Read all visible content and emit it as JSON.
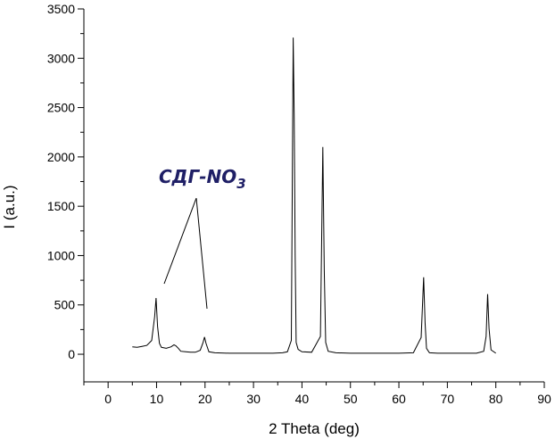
{
  "chart_data": {
    "type": "line",
    "xlabel": "2 Theta (deg)",
    "ylabel": "I (a.u.)",
    "xlim": [
      -5,
      90
    ],
    "ylim": [
      -280,
      3500
    ],
    "xticks": [
      "0",
      "10",
      "20",
      "30",
      "40",
      "50",
      "60",
      "70",
      "80",
      "90"
    ],
    "yticks": [
      "0",
      "500",
      "1000",
      "1500",
      "2000",
      "2500",
      "3000",
      "3500"
    ],
    "grid": false,
    "series": [
      {
        "color": "#000000",
        "x": [
          5,
          6,
          7,
          8,
          9,
          9.6,
          9.9,
          10.2,
          10.6,
          11,
          12,
          13,
          13.6,
          14,
          14.5,
          15,
          16,
          17,
          18,
          19,
          19.6,
          19.9,
          20.2,
          20.8,
          22,
          25,
          28,
          31,
          34,
          36,
          37,
          37.8,
          38.2,
          38.4,
          38.6,
          38.8,
          39.2,
          40,
          42,
          43.8,
          44.3,
          44.6,
          44.9,
          45.4,
          47,
          50,
          55,
          60,
          63,
          64.6,
          65.1,
          65.4,
          65.7,
          66.3,
          68,
          72,
          76,
          77.5,
          78,
          78.3,
          78.6,
          79,
          80
        ],
        "y": [
          75,
          70,
          80,
          90,
          140,
          380,
          570,
          280,
          110,
          70,
          60,
          75,
          95,
          85,
          60,
          30,
          25,
          20,
          20,
          40,
          120,
          175,
          110,
          25,
          15,
          10,
          10,
          10,
          10,
          15,
          25,
          140,
          3210,
          2420,
          1000,
          120,
          50,
          25,
          20,
          180,
          2100,
          850,
          120,
          30,
          15,
          10,
          10,
          10,
          15,
          170,
          780,
          320,
          60,
          15,
          10,
          10,
          10,
          30,
          180,
          610,
          260,
          45,
          10
        ]
      }
    ],
    "annotations": [
      {
        "text": "СДГ-NO",
        "subscript": "3"
      }
    ]
  }
}
